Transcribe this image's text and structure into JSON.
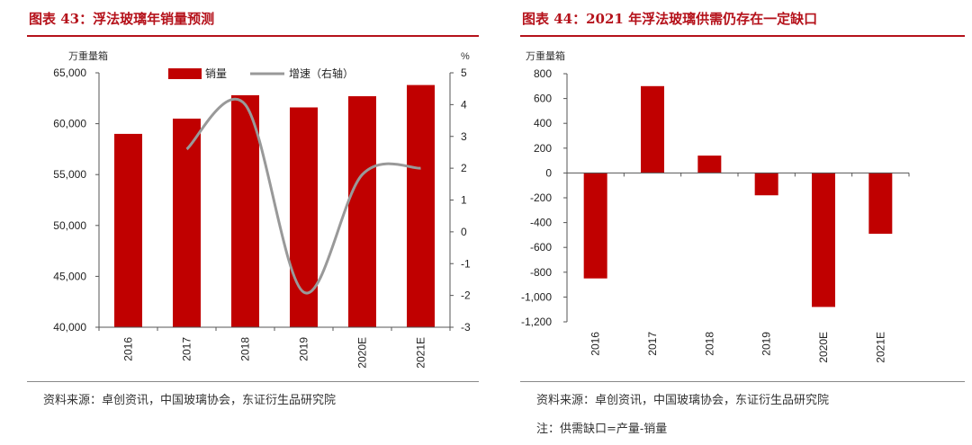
{
  "left": {
    "title": "图表 43：浮法玻璃年销量预测",
    "source": "资料来源：卓创资讯，中国玻璃协会，东证衍生品研究院",
    "unit_left": "万重量箱",
    "unit_right": "%",
    "legend": {
      "bar": "销量",
      "line": "增速（右轴）"
    }
  },
  "right": {
    "title": "图表 44：2021 年浮法玻璃供需仍存在一定缺口",
    "source": "资料来源：卓创资讯，中国玻璃协会，东证衍生品研究院",
    "note": "注：供需缺口=产量-销量",
    "unit_left": "万重量箱"
  },
  "colors": {
    "bar": "#c00000",
    "line": "#999999",
    "title": "#b5121b"
  },
  "chart_data": [
    {
      "type": "bar",
      "categories": [
        "2016",
        "2017",
        "2018",
        "2019",
        "2020E",
        "2021E"
      ],
      "series": [
        {
          "name": "销量",
          "axis": "left",
          "values": [
            59000,
            60500,
            62800,
            61600,
            62700,
            63800
          ]
        },
        {
          "name": "增速（右轴）",
          "axis": "right",
          "type": "line",
          "values": [
            null,
            2.6,
            4.0,
            -1.9,
            1.8,
            2.0
          ]
        }
      ],
      "ylim": [
        40000,
        65000
      ],
      "yticks": [
        "40,000",
        "45,000",
        "50,000",
        "55,000",
        "60,000",
        "65,000"
      ],
      "y2lim": [
        -3,
        5
      ],
      "y2ticks": [
        "-3",
        "-2",
        "-1",
        "0",
        "1",
        "2",
        "3",
        "4",
        "5"
      ],
      "legend": "top-center"
    },
    {
      "type": "bar",
      "categories": [
        "2016",
        "2017",
        "2018",
        "2019",
        "2020E",
        "2021E"
      ],
      "values": [
        -850,
        700,
        140,
        -180,
        -1080,
        -490
      ],
      "ylim": [
        -1200,
        800
      ],
      "yticks": [
        "-1,200",
        "-1,000",
        "-800",
        "-600",
        "-400",
        "-200",
        "0",
        "200",
        "400",
        "600",
        "800"
      ]
    }
  ]
}
